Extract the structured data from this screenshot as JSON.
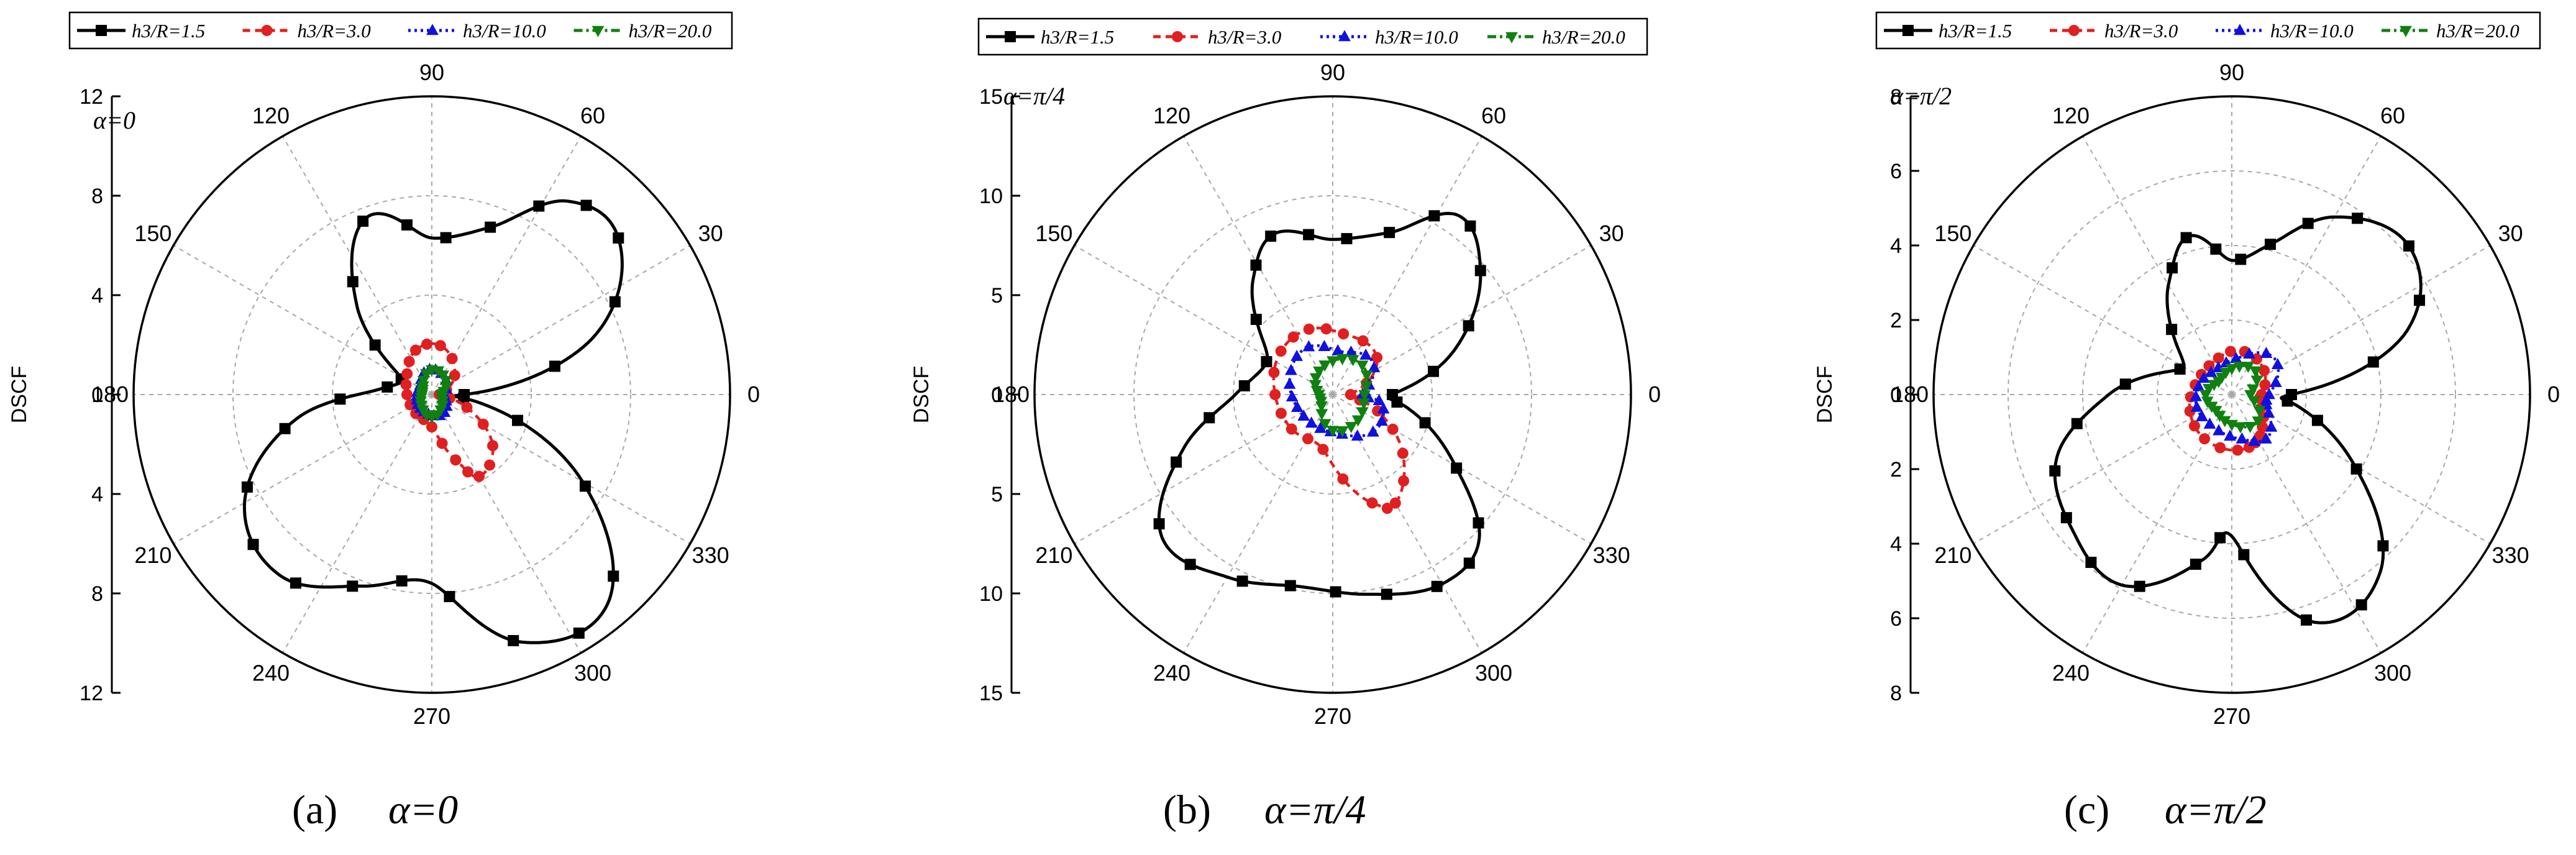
{
  "chart_data": [
    {
      "type": "polar-line",
      "panel": "a",
      "caption_letter": "(a)",
      "caption_expr": "α=0",
      "corner_label": "α=0",
      "ylabel": "DSCF",
      "rmax": 12,
      "radial_ticks": [
        "12",
        "8",
        "4",
        "0",
        "4",
        "8",
        "12"
      ],
      "angle_ticks": [
        0,
        30,
        60,
        90,
        120,
        150,
        180,
        210,
        240,
        270,
        300,
        330
      ],
      "legend": [
        "h3/R=1.5",
        "h3/R=3.0",
        "h3/R=10.0",
        "h3/R=20.0"
      ],
      "series": [
        {
          "name": "h3/R=1.5",
          "color": "#000000",
          "marker": "square",
          "dash": "",
          "points": [
            [
              0,
              1.3
            ],
            [
              20,
              7.0
            ],
            [
              40,
              9.8
            ],
            [
              55,
              9.5
            ],
            [
              70,
              7.2
            ],
            [
              90,
              6.3
            ],
            [
              110,
              7.6
            ],
            [
              130,
              4.7
            ],
            [
              150,
              1.5
            ],
            [
              175,
              2.2
            ],
            [
              190,
              5.5
            ],
            [
              210,
              8.7
            ],
            [
              230,
              9.5
            ],
            [
              250,
              8.2
            ],
            [
              270,
              7.6
            ],
            [
              290,
              10.6
            ],
            [
              310,
              11.0
            ],
            [
              330,
              7.0
            ],
            [
              350,
              2.0
            ]
          ]
        },
        {
          "name": "h3/R=3.0",
          "color": "#e02020",
          "marker": "circle",
          "dash": "12 8",
          "points": [
            [
              0,
              0.3
            ],
            [
              40,
              1.2
            ],
            [
              80,
              2.0
            ],
            [
              110,
              1.9
            ],
            [
              140,
              1.3
            ],
            [
              180,
              1.0
            ],
            [
              230,
              1.0
            ],
            [
              270,
              1.3
            ],
            [
              290,
              2.8
            ],
            [
              300,
              3.8
            ],
            [
              320,
              3.2
            ],
            [
              340,
              1.5
            ]
          ]
        },
        {
          "name": "h3/R=10.0",
          "color": "#1010e0",
          "marker": "triangle-up",
          "dash": "4 6",
          "points": [
            [
              0,
              0.5
            ],
            [
              60,
              0.9
            ],
            [
              100,
              1.0
            ],
            [
              140,
              0.6
            ],
            [
              180,
              0.6
            ],
            [
              220,
              0.7
            ],
            [
              260,
              0.8
            ],
            [
              300,
              0.9
            ],
            [
              340,
              0.6
            ]
          ]
        },
        {
          "name": "h3/R=20.0",
          "color": "#108010",
          "marker": "triangle-down",
          "dash": "14 6 4 6",
          "points": [
            [
              0,
              0.4
            ],
            [
              45,
              0.8
            ],
            [
              90,
              1.0
            ],
            [
              135,
              0.5
            ],
            [
              180,
              0.4
            ],
            [
              225,
              0.6
            ],
            [
              270,
              0.9
            ],
            [
              315,
              0.6
            ]
          ]
        }
      ]
    },
    {
      "type": "polar-line",
      "panel": "b",
      "caption_letter": "(b)",
      "caption_expr": "α=π/4",
      "corner_label": "α=π/4",
      "ylabel": "DSCF",
      "rmax": 15,
      "radial_ticks": [
        "15",
        "10",
        "5",
        "0",
        "5",
        "10",
        "15"
      ],
      "angle_ticks": [
        0,
        30,
        60,
        90,
        120,
        150,
        180,
        210,
        240,
        270,
        300,
        330
      ],
      "legend": [
        "h3/R=1.5",
        "h3/R=3.0",
        "h3/R=10.0",
        "h3/R=20.0"
      ],
      "series": [
        {
          "name": "h3/R=1.5",
          "color": "#000000",
          "marker": "square",
          "dash": "",
          "points": [
            [
              0,
              3.0
            ],
            [
              20,
              6.5
            ],
            [
              40,
              9.7
            ],
            [
              55,
              11.0
            ],
            [
              70,
              8.7
            ],
            [
              90,
              7.8
            ],
            [
              110,
              8.6
            ],
            [
              125,
              7.0
            ],
            [
              150,
              3.8
            ],
            [
              180,
              4.9
            ],
            [
              200,
              8.0
            ],
            [
              220,
              11.2
            ],
            [
              240,
              10.6
            ],
            [
              260,
              9.8
            ],
            [
              280,
              10.2
            ],
            [
              300,
              11.0
            ],
            [
              315,
              10.4
            ],
            [
              330,
              7.1
            ],
            [
              350,
              3.8
            ]
          ]
        },
        {
          "name": "h3/R=3.0",
          "color": "#e02020",
          "marker": "circle",
          "dash": "12 8",
          "points": [
            [
              0,
              0.9
            ],
            [
              40,
              2.9
            ],
            [
              80,
              3.1
            ],
            [
              110,
              3.5
            ],
            [
              140,
              3.4
            ],
            [
              180,
              2.9
            ],
            [
              220,
              2.7
            ],
            [
              260,
              2.8
            ],
            [
              290,
              5.8
            ],
            [
              300,
              6.3
            ],
            [
              320,
              4.6
            ],
            [
              340,
              2.4
            ]
          ]
        },
        {
          "name": "h3/R=10.0",
          "color": "#1010e0",
          "marker": "triangle-up",
          "dash": "4 6",
          "points": [
            [
              0,
              1.5
            ],
            [
              40,
              2.6
            ],
            [
              80,
              2.2
            ],
            [
              120,
              2.7
            ],
            [
              160,
              2.3
            ],
            [
              200,
              1.9
            ],
            [
              240,
              1.8
            ],
            [
              280,
              2.0
            ],
            [
              320,
              2.8
            ],
            [
              350,
              2.5
            ]
          ]
        },
        {
          "name": "h3/R=20.0",
          "color": "#108010",
          "marker": "triangle-down",
          "dash": "14 6 4 6",
          "points": [
            [
              0,
              1.6
            ],
            [
              45,
              2.1
            ],
            [
              90,
              1.7
            ],
            [
              135,
              1.2
            ],
            [
              180,
              0.7
            ],
            [
              225,
              0.8
            ],
            [
              270,
              1.8
            ],
            [
              315,
              1.8
            ]
          ]
        }
      ]
    },
    {
      "type": "polar-line",
      "panel": "c",
      "caption_letter": "(c)",
      "caption_expr": "α=π/2",
      "corner_label": "α=π/2",
      "ylabel": "DSCF",
      "rmax": 8,
      "radial_ticks": [
        "8",
        "6",
        "4",
        "2",
        "0",
        "2",
        "4",
        "6",
        "8"
      ],
      "angle_ticks": [
        0,
        30,
        60,
        90,
        120,
        150,
        180,
        210,
        240,
        270,
        300,
        330
      ],
      "legend": [
        "h3/R=1.5",
        "h3/R=3.0",
        "h3/R=10.0",
        "h3/R=20.0"
      ],
      "series": [
        {
          "name": "h3/R=1.5",
          "color": "#000000",
          "marker": "square",
          "dash": "",
          "points": [
            [
              0,
              1.6
            ],
            [
              20,
              5.0
            ],
            [
              40,
              6.2
            ],
            [
              60,
              5.5
            ],
            [
              75,
              4.2
            ],
            [
              90,
              3.6
            ],
            [
              105,
              4.4
            ],
            [
              120,
              3.4
            ],
            [
              150,
              1.5
            ],
            [
              180,
              3.3
            ],
            [
              200,
              5.0
            ],
            [
              220,
              5.6
            ],
            [
              240,
              5.9
            ],
            [
              260,
              4.5
            ],
            [
              270,
              3.8
            ],
            [
              290,
              6.5
            ],
            [
              310,
              6.2
            ],
            [
              330,
              3.8
            ],
            [
              350,
              1.8
            ]
          ]
        },
        {
          "name": "h3/R=3.0",
          "color": "#e02020",
          "marker": "circle",
          "dash": "12 8",
          "points": [
            [
              0,
              0.8
            ],
            [
              40,
              1.1
            ],
            [
              80,
              1.2
            ],
            [
              120,
              1.0
            ],
            [
              160,
              1.0
            ],
            [
              200,
              1.2
            ],
            [
              240,
              1.4
            ],
            [
              280,
              1.5
            ],
            [
              300,
              1.4
            ],
            [
              320,
              1.1
            ],
            [
              350,
              0.8
            ]
          ]
        },
        {
          "name": "h3/R=10.0",
          "color": "#1010e0",
          "marker": "triangle-up",
          "dash": "4 6",
          "points": [
            [
              0,
              1.0
            ],
            [
              40,
              1.5
            ],
            [
              80,
              1.0
            ],
            [
              120,
              0.8
            ],
            [
              160,
              0.9
            ],
            [
              200,
              1.0
            ],
            [
              240,
              1.0
            ],
            [
              280,
              1.2
            ],
            [
              310,
              1.5
            ],
            [
              340,
              1.0
            ]
          ]
        },
        {
          "name": "h3/R=20.0",
          "color": "#108010",
          "marker": "triangle-down",
          "dash": "14 6 4 6",
          "points": [
            [
              0,
              0.5
            ],
            [
              45,
              0.9
            ],
            [
              90,
              0.7
            ],
            [
              135,
              0.5
            ],
            [
              180,
              0.7
            ],
            [
              225,
              0.6
            ],
            [
              270,
              0.8
            ],
            [
              315,
              1.0
            ]
          ]
        }
      ]
    }
  ]
}
